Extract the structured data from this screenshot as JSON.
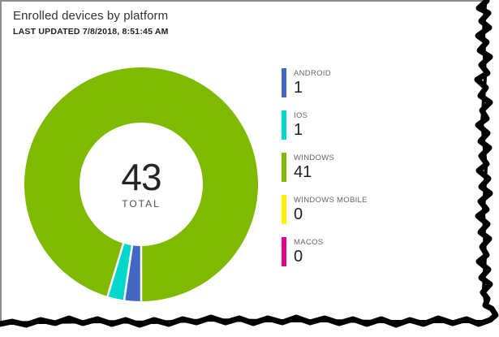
{
  "header": {
    "title": "Enrolled devices by platform",
    "last_updated": "LAST UPDATED 7/8/2018, 8:51:45 AM"
  },
  "donut_center": {
    "total_value": "43",
    "total_label": "TOTAL"
  },
  "chart_data": {
    "type": "pie",
    "variant": "donut",
    "title": "Enrolled devices by platform",
    "last_updated_text": "LAST UPDATED 7/8/2018, 8:51:45 AM",
    "total": 43,
    "start_angle_deg": 180,
    "direction": "clockwise",
    "legend_position": "right",
    "categories": [
      "ANDROID",
      "IOS",
      "WINDOWS",
      "WINDOWS MOBILE",
      "MACOS"
    ],
    "values": [
      1,
      1,
      41,
      0,
      0
    ],
    "colors": [
      "#4467c4",
      "#00d8cc",
      "#7fba00",
      "#fff100",
      "#e3008c"
    ],
    "separator_color": "#ffffff"
  },
  "legend": {
    "items": [
      {
        "label": "ANDROID",
        "value": "1",
        "color": "#4467c4"
      },
      {
        "label": "IOS",
        "value": "1",
        "color": "#00d8cc"
      },
      {
        "label": "WINDOWS",
        "value": "41",
        "color": "#7fba00"
      },
      {
        "label": "WINDOWS MOBILE",
        "value": "0",
        "color": "#fff100"
      },
      {
        "label": "MACOS",
        "value": "0",
        "color": "#e3008c"
      }
    ]
  }
}
